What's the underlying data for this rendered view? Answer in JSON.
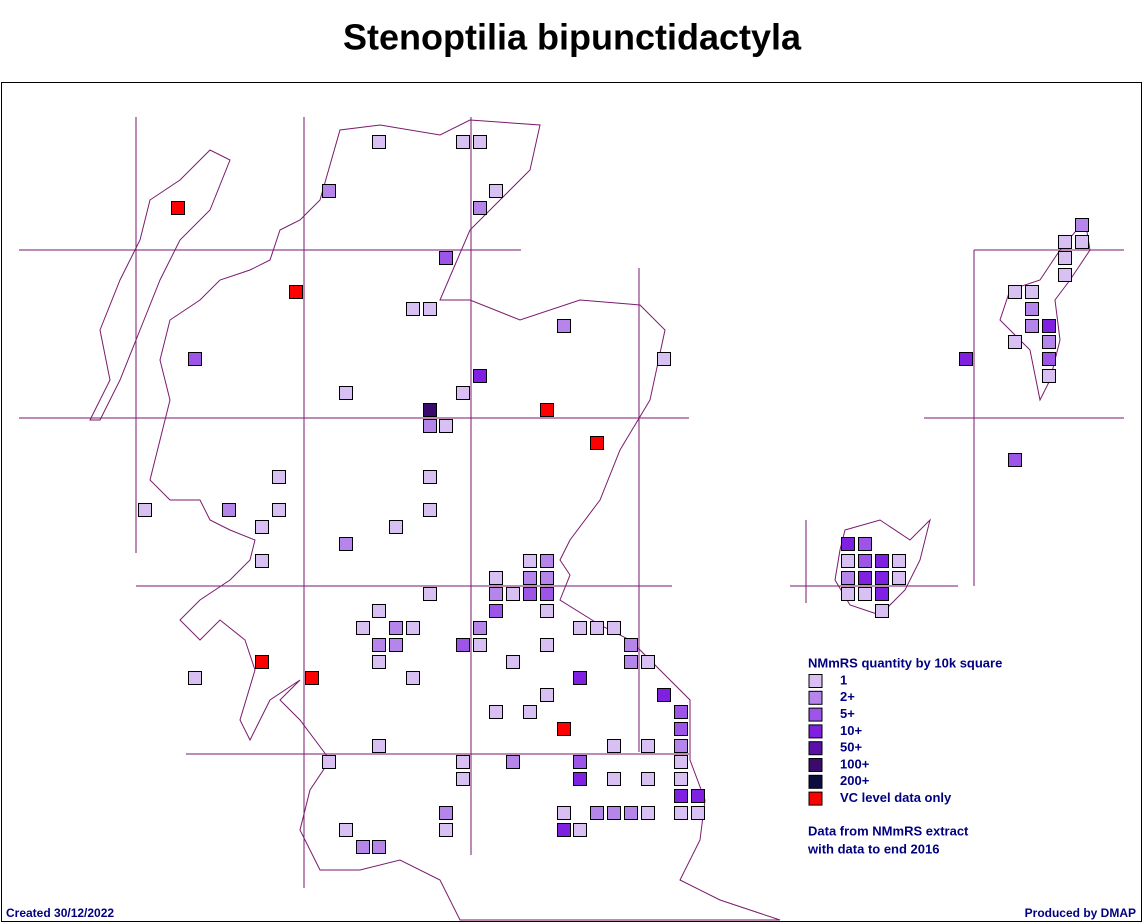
{
  "title": "Stenoptilia bipunctidactyla",
  "legend": {
    "title": "NMmRS quantity by 10k square",
    "items": [
      {
        "label": "1",
        "color": "#d9c0f2"
      },
      {
        "label": "2+",
        "color": "#b585ea"
      },
      {
        "label": "5+",
        "color": "#9c55e6"
      },
      {
        "label": "10+",
        "color": "#8020e0"
      },
      {
        "label": "50+",
        "color": "#5c10a8"
      },
      {
        "label": "100+",
        "color": "#3a0a6c"
      },
      {
        "label": "200+",
        "color": "#0c0c40"
      },
      {
        "label": "VC level data only",
        "color": "#ff0000"
      }
    ]
  },
  "notes": [
    "Data from NMmRS extract",
    "with data to end 2016"
  ],
  "footer": {
    "created": "Created 30/12/2022",
    "produced": "Produced by DMAP"
  }
}
